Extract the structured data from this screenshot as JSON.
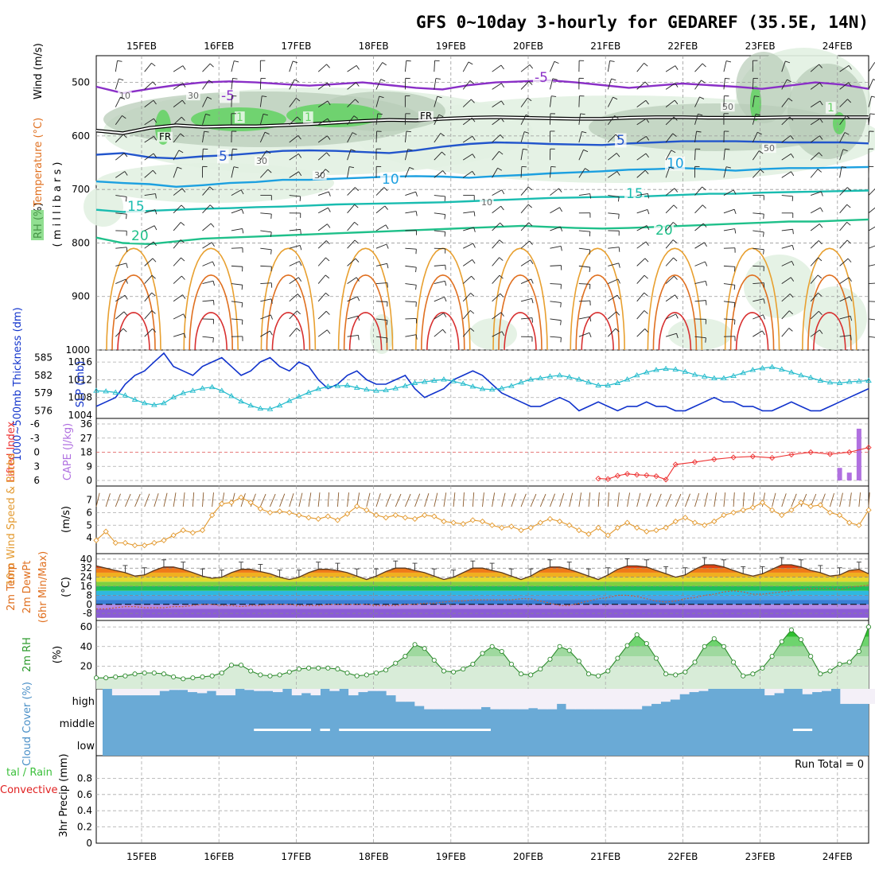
{
  "title": "GFS 0~10day 3-hourly for GEDAREF (35.5E, 14N)",
  "dates": [
    "15FEB",
    "16FEB",
    "17FEB",
    "18FEB",
    "19FEB",
    "20FEB",
    "21FEB",
    "22FEB",
    "23FEB",
    "24FEB"
  ],
  "colors": {
    "purple": "#8a2fc7",
    "black": "#000000",
    "blue": "#2255cc",
    "skyblue": "#1ca0e0",
    "teal": "#19bcb0",
    "green": "#1fc08a",
    "orange1": "#e8a030",
    "orange2": "#e07020",
    "red": "#d83030",
    "rhlight": "#e2f1e2",
    "rhmid": "#b8ccb8",
    "rhdark": "#7aaa7a",
    "rhgreen": "#62d262",
    "slp": "#1133cc",
    "thick": "#22bbcc",
    "li": "#ee3333",
    "cape": "#b070e0",
    "wind": "#e39a30",
    "rh2m": "#2e8b2e",
    "cloud": "#6aaad6",
    "cloudgap": "#f4f0f8"
  },
  "chart_data": [
    {
      "type": "line",
      "panel": "upper-air cross section",
      "ylabel_parts": [
        "Wind (m/s)",
        "Temperature (°C)",
        "RH (%)"
      ],
      "ylabel_units": "( m i l l i b a r s )",
      "yticks": [
        "500",
        "600",
        "700",
        "800",
        "900",
        "1000"
      ],
      "ylim": [
        1000,
        450
      ],
      "contour_labels": [
        "-5",
        "-5",
        "FR",
        "FR",
        "5",
        "5",
        "10",
        "10",
        "15",
        "15",
        "20",
        "20",
        "30",
        "30",
        "30",
        "50",
        "50",
        "10",
        "10",
        "1",
        "1",
        "1"
      ],
      "isotherms": [
        {
          "name": "-5",
          "color": "purple",
          "p": [
            508,
            520,
            512,
            505,
            500,
            498,
            500,
            503,
            506,
            503,
            500,
            505,
            510,
            513,
            505,
            500,
            498,
            496,
            500,
            505,
            510,
            506,
            502,
            505,
            508,
            512,
            506,
            500,
            504,
            512
          ]
        },
        {
          "name": "FR",
          "color": "black",
          "p": [
            590,
            595,
            585,
            580,
            583,
            582,
            582,
            580,
            578,
            575,
            572,
            570,
            571,
            568,
            566,
            565,
            566,
            567,
            568,
            568,
            566,
            565,
            565,
            566,
            566,
            566,
            565,
            565,
            565,
            565
          ]
        },
        {
          "name": "5",
          "color": "blue",
          "p": [
            635,
            632,
            640,
            642,
            638,
            636,
            632,
            628,
            627,
            628,
            630,
            632,
            627,
            620,
            615,
            612,
            613,
            615,
            616,
            617,
            614,
            612,
            610,
            610,
            610,
            611,
            612,
            612,
            612,
            614
          ]
        },
        {
          "name": "10",
          "color": "skyblue",
          "p": [
            685,
            688,
            690,
            695,
            692,
            688,
            686,
            682,
            682,
            680,
            678,
            676,
            675,
            676,
            678,
            675,
            673,
            670,
            668,
            666,
            663,
            662,
            660,
            662,
            665,
            662,
            660,
            660,
            659,
            658
          ]
        },
        {
          "name": "15",
          "color": "teal",
          "p": [
            738,
            742,
            740,
            738,
            736,
            735,
            733,
            732,
            730,
            728,
            727,
            726,
            725,
            724,
            722,
            720,
            718,
            716,
            715,
            714,
            714,
            712,
            710,
            708,
            708,
            706,
            705,
            704,
            703,
            702
          ]
        },
        {
          "name": "20",
          "color": "green",
          "p": [
            790,
            800,
            802,
            797,
            792,
            790,
            788,
            786,
            784,
            782,
            780,
            778,
            776,
            774,
            772,
            770,
            768,
            770,
            772,
            773,
            772,
            770,
            768,
            766,
            764,
            762,
            760,
            760,
            758,
            756
          ]
        }
      ]
    },
    {
      "type": "line",
      "panel": "SLP and 1000-500mb thickness",
      "ylabel_left": "1000~500mb Thickness (dm)",
      "ylabel_right": "SLP (mb)",
      "yticks_thickness": [
        "585",
        "582",
        "579",
        "576"
      ],
      "yticks_slp": [
        "1016",
        "1012",
        "1008",
        "1004"
      ],
      "series": [
        {
          "name": "SLP",
          "values": [
            1006,
            1007,
            1008,
            1011,
            1013,
            1014,
            1016,
            1018,
            1015,
            1014,
            1013,
            1015,
            1016,
            1017,
            1015,
            1013,
            1014,
            1016,
            1017,
            1015,
            1014,
            1016,
            1015,
            1012,
            1010,
            1011,
            1013,
            1014,
            1012,
            1011,
            1011,
            1012,
            1013,
            1010,
            1008,
            1009,
            1010,
            1012,
            1013,
            1014,
            1013,
            1011,
            1009,
            1008,
            1007,
            1006,
            1006,
            1007,
            1008,
            1007,
            1005,
            1006,
            1007,
            1006,
            1005,
            1006,
            1006,
            1007,
            1006,
            1006,
            1005,
            1005,
            1006,
            1007,
            1008,
            1007,
            1007,
            1006,
            1006,
            1005,
            1005,
            1006,
            1007,
            1006,
            1005,
            1005,
            1006,
            1007,
            1008,
            1009,
            1010
          ]
        },
        {
          "name": "Thickness",
          "values": [
            579.4,
            579.3,
            579.1,
            578.6,
            577.9,
            577.3,
            577.0,
            577.3,
            578.3,
            579.0,
            579.4,
            579.8,
            580.0,
            579.4,
            578.5,
            577.6,
            576.9,
            576.4,
            576.3,
            576.9,
            577.7,
            578.4,
            579.1,
            579.7,
            580.1,
            580.2,
            580.3,
            579.9,
            579.6,
            579.4,
            579.5,
            579.8,
            580.2,
            580.7,
            580.9,
            581.1,
            581.3,
            581.0,
            580.6,
            580.1,
            579.7,
            579.6,
            579.8,
            580.2,
            580.8,
            581.3,
            581.5,
            581.8,
            582.0,
            581.7,
            581.3,
            580.8,
            580.3,
            580.3,
            580.7,
            581.3,
            582.0,
            582.5,
            582.9,
            583.1,
            583.0,
            582.6,
            582.1,
            581.8,
            581.5,
            581.5,
            581.9,
            582.4,
            582.9,
            583.2,
            583.4,
            583.0,
            582.5,
            582.0,
            581.6,
            581.1,
            580.8,
            580.7,
            580.9,
            581.0,
            581.1
          ]
        }
      ]
    },
    {
      "type": "line",
      "panel": "Lifted Index and CAPE",
      "ylabel_left": "Lifted Index",
      "ylabel_right": "CAPE (J/kg)",
      "yticks_li": [
        "-6",
        "-3",
        "0",
        "3",
        "6"
      ],
      "yticks_cape": [
        "36",
        "27",
        "18",
        "9",
        "0"
      ],
      "li_x": [
        60,
        62,
        64,
        66,
        68,
        70,
        72,
        74,
        76,
        78,
        80
      ],
      "li_values": [
        2.6,
        2.1,
        1.5,
        1.1,
        0.9,
        1.2,
        0.5,
        0.0,
        0.4,
        0.0,
        -1.0
      ],
      "li_gap_values": [
        5.6,
        5.7,
        5.0,
        4.6,
        4.8,
        4.9,
        5.1,
        5.8
      ],
      "cape_x": [
        77,
        78,
        79
      ],
      "cape_values": [
        8,
        5,
        33
      ]
    },
    {
      "type": "line",
      "panel": "10m wind speed and barbs",
      "ylabel_left": "10m Wind Speed & Barbs",
      "ylabel_right": "(m/s)",
      "yticks": [
        "7",
        "6",
        "5",
        "4"
      ],
      "values": [
        3.8,
        4.5,
        3.6,
        3.6,
        3.4,
        3.4,
        3.6,
        3.8,
        4.2,
        4.6,
        4.4,
        4.6,
        5.8,
        6.7,
        6.8,
        7.2,
        6.8,
        6.3,
        6.0,
        6.1,
        6.0,
        5.8,
        5.6,
        5.5,
        5.7,
        5.4,
        5.9,
        6.5,
        6.2,
        5.8,
        5.6,
        5.8,
        5.6,
        5.5,
        5.8,
        5.7,
        5.3,
        5.2,
        5.1,
        5.4,
        5.3,
        5.0,
        4.8,
        4.9,
        4.6,
        4.8,
        5.2,
        5.5,
        5.3,
        5.0,
        4.6,
        4.3,
        4.8,
        4.2,
        4.8,
        5.2,
        4.8,
        4.5,
        4.6,
        4.8,
        5.3,
        5.6,
        5.2,
        5.0,
        5.3,
        5.8,
        6.0,
        6.2,
        6.4,
        6.8,
        6.2,
        5.8,
        6.2,
        6.8,
        6.5,
        6.6,
        6.0,
        5.8,
        5.2,
        5.0,
        6.2
      ]
    },
    {
      "type": "area",
      "panel": "2m temperature and dewpoint",
      "ylabel_parts": [
        "2m Temp",
        "2m DewPt",
        "(6hr Min/Max)"
      ],
      "ylabel_right": "(°C)",
      "yticks": [
        "40",
        "32",
        "24",
        "16",
        "8",
        "0",
        "-8"
      ],
      "temp": [
        34,
        32,
        30,
        28,
        25,
        26,
        30,
        33,
        33,
        31,
        28,
        25,
        23,
        24,
        28,
        31,
        31,
        29,
        27,
        24,
        22,
        24,
        28,
        31,
        31,
        30,
        28,
        25,
        22,
        25,
        29,
        32,
        32,
        30,
        28,
        25,
        22,
        24,
        28,
        32,
        32,
        30,
        28,
        25,
        22,
        25,
        30,
        33,
        33,
        31,
        28,
        25,
        22,
        26,
        31,
        34,
        34,
        33,
        30,
        27,
        24,
        26,
        31,
        35,
        35,
        33,
        30,
        27,
        25,
        27,
        31,
        35,
        35,
        33,
        30,
        28,
        25,
        26,
        30,
        31,
        27
      ],
      "dewpoint": [
        -4,
        -4,
        -3,
        -2,
        -2,
        -3,
        -3,
        -3,
        -2,
        -2,
        -1,
        0,
        0,
        -1,
        -1,
        -2,
        -1,
        -1,
        0,
        0,
        0,
        -1,
        -1,
        -1,
        0,
        0,
        0,
        0,
        0,
        -1,
        -1,
        -1,
        0,
        0,
        1,
        1,
        2,
        3,
        3,
        4,
        4,
        4,
        4,
        4,
        5,
        5,
        3,
        1,
        -1,
        -1,
        1,
        3,
        5,
        6,
        8,
        8,
        7,
        5,
        3,
        2,
        3,
        5,
        6,
        8,
        9,
        11,
        12,
        11,
        9,
        9,
        10,
        11,
        12,
        13,
        14,
        14,
        14,
        13,
        15,
        16,
        17
      ]
    },
    {
      "type": "area",
      "panel": "2m relative humidity",
      "ylabel": "2m RH",
      "ylabel_right": "(%)",
      "yticks": [
        "60",
        "40",
        "20"
      ],
      "values": [
        8,
        8,
        9,
        10,
        12,
        13,
        13,
        12,
        9,
        7,
        8,
        9,
        10,
        13,
        21,
        21,
        15,
        11,
        10,
        11,
        14,
        17,
        18,
        18,
        18,
        17,
        13,
        10,
        11,
        13,
        16,
        23,
        30,
        42,
        38,
        26,
        15,
        14,
        17,
        22,
        33,
        40,
        35,
        22,
        12,
        11,
        17,
        27,
        40,
        36,
        25,
        12,
        10,
        15,
        28,
        41,
        52,
        43,
        28,
        12,
        11,
        14,
        24,
        40,
        48,
        40,
        24,
        10,
        12,
        18,
        30,
        45,
        57,
        47,
        30,
        12,
        15,
        22,
        24,
        35,
        60,
        50
      ]
    },
    {
      "type": "bar",
      "panel": "cloud cover",
      "ylabel": "Cloud Cover (%)",
      "levels": [
        "high",
        "middle",
        "low"
      ],
      "high": [
        100,
        70,
        70,
        70,
        70,
        70,
        90,
        95,
        95,
        85,
        80,
        90,
        70,
        70,
        100,
        95,
        90,
        90,
        85,
        100,
        70,
        80,
        70,
        100,
        90,
        100,
        70,
        85,
        90,
        90,
        70,
        40,
        40,
        20,
        5,
        5,
        5,
        5,
        5,
        5,
        15,
        5,
        5,
        5,
        5,
        10,
        5,
        5,
        30,
        5,
        5,
        5,
        5,
        5,
        5,
        5,
        5,
        20,
        30,
        40,
        50,
        75,
        85,
        90,
        100,
        100,
        100,
        100,
        100,
        100,
        70,
        80,
        100,
        100,
        75,
        85,
        90,
        100,
        30,
        30,
        30,
        30
      ],
      "middle": [
        0,
        0,
        0,
        0,
        0,
        0,
        0,
        0,
        0,
        0,
        0,
        0,
        0,
        0,
        0,
        0,
        10,
        10,
        10,
        10,
        10,
        10,
        0,
        10,
        0,
        10,
        10,
        10,
        10,
        10,
        10,
        10,
        10,
        10,
        10,
        10,
        10,
        10,
        10,
        10,
        10,
        0,
        0,
        0,
        0,
        0,
        0,
        0,
        0,
        0,
        0,
        0,
        0,
        0,
        0,
        0,
        0,
        0,
        0,
        0,
        0,
        0,
        0,
        0,
        0,
        0,
        0,
        0,
        0,
        0,
        0,
        0,
        0,
        10,
        10,
        0,
        0,
        0,
        0,
        0,
        0,
        0
      ],
      "low": [
        0,
        0,
        0,
        0,
        0,
        0,
        0,
        0,
        0,
        0,
        0,
        0,
        0,
        0,
        0,
        0,
        0,
        0,
        0,
        0,
        0,
        0,
        0,
        0,
        0,
        0,
        0,
        0,
        0,
        0,
        0,
        0,
        0,
        0,
        0,
        0,
        0,
        0,
        0,
        0,
        0,
        0,
        0,
        0,
        0,
        0,
        0,
        0,
        0,
        0,
        0,
        0,
        0,
        0,
        0,
        0,
        0,
        0,
        0,
        0,
        0,
        0,
        0,
        0,
        0,
        0,
        0,
        0,
        0,
        0,
        0,
        0,
        0,
        0,
        0,
        0,
        0,
        0,
        0,
        0,
        0,
        0
      ]
    },
    {
      "type": "bar",
      "panel": "3hr precipitation",
      "ylabel": "3hr Precip (mm)",
      "legend_left": [
        "tal / Rain",
        "Convective"
      ],
      "yticks": [
        "0.8",
        "0.6",
        "0.4",
        "0.2",
        "0"
      ],
      "ylim": [
        0,
        1
      ],
      "run_total_label": "Run Total = 0",
      "values": []
    }
  ]
}
